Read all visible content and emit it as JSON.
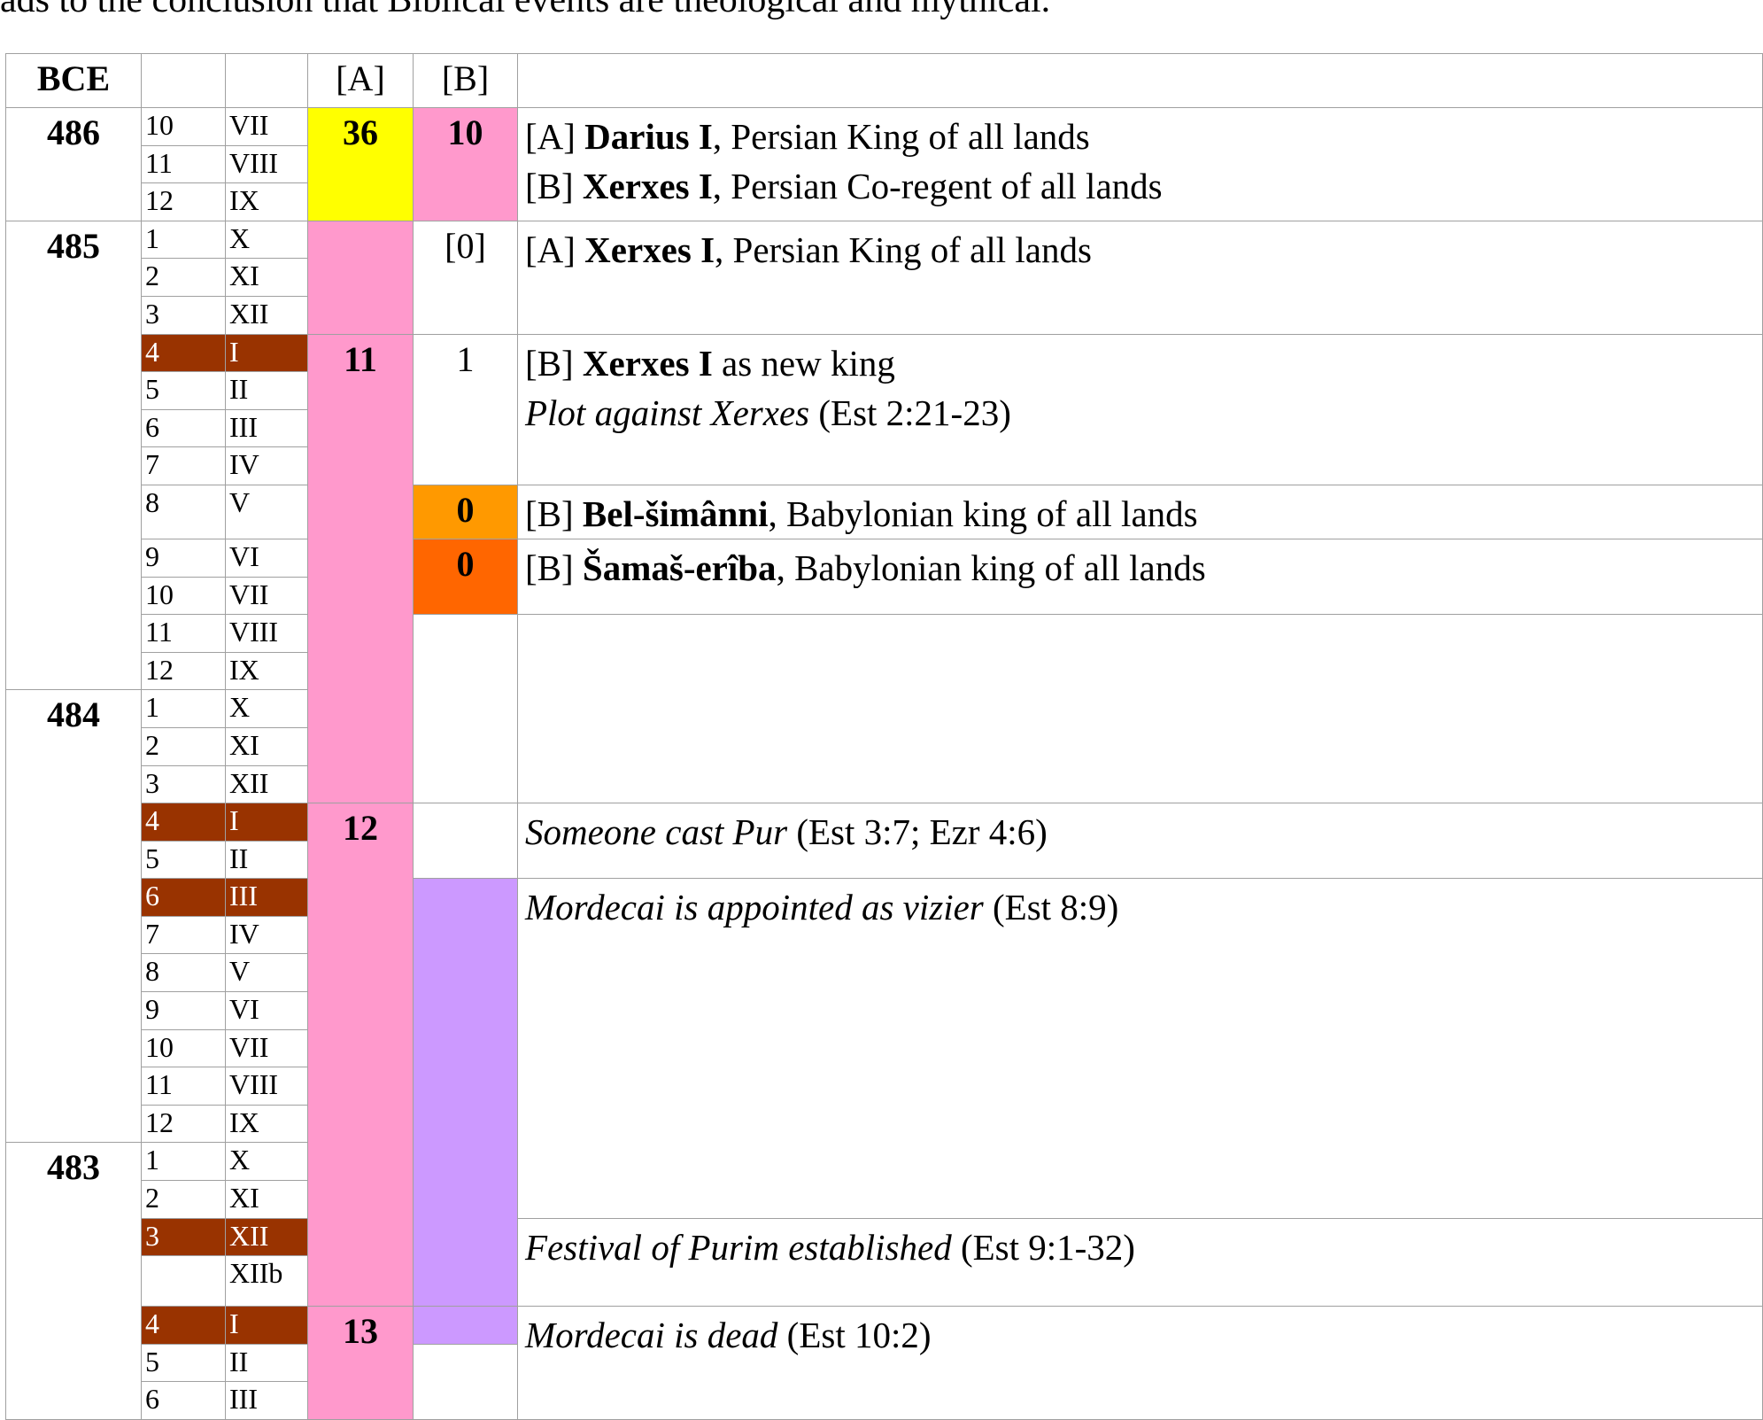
{
  "top_text": "ads to the conclusion that Biblical events are theological and mythical.",
  "header": {
    "bce": "BCE",
    "a": "[A]",
    "b": "[B]"
  },
  "years": [
    {
      "year": "486",
      "months": [
        {
          "num": "10",
          "roman": "VII"
        },
        {
          "num": "11",
          "roman": "VIII"
        },
        {
          "num": "12",
          "roman": "IX"
        }
      ]
    },
    {
      "year": "485",
      "months": [
        {
          "num": "1",
          "roman": "X"
        },
        {
          "num": "2",
          "roman": "XI"
        },
        {
          "num": "3",
          "roman": "XII"
        },
        {
          "num": "4",
          "roman": "I",
          "highlight": true
        },
        {
          "num": "5",
          "roman": "II"
        },
        {
          "num": "6",
          "roman": "III"
        },
        {
          "num": "7",
          "roman": "IV"
        },
        {
          "num": "8",
          "roman": "V"
        },
        {
          "num": "9",
          "roman": "VI"
        },
        {
          "num": "10",
          "roman": "VII"
        },
        {
          "num": "11",
          "roman": "VIII"
        },
        {
          "num": "12",
          "roman": "IX"
        }
      ]
    },
    {
      "year": "484",
      "months": [
        {
          "num": "1",
          "roman": "X"
        },
        {
          "num": "2",
          "roman": "XI"
        },
        {
          "num": "3",
          "roman": "XII"
        },
        {
          "num": "4",
          "roman": "I",
          "highlight": true
        },
        {
          "num": "5",
          "roman": "II"
        },
        {
          "num": "6",
          "roman": "III",
          "highlight": true
        },
        {
          "num": "7",
          "roman": "IV"
        },
        {
          "num": "8",
          "roman": "V"
        },
        {
          "num": "9",
          "roman": "VI"
        },
        {
          "num": "10",
          "roman": "VII"
        },
        {
          "num": "11",
          "roman": "VIII"
        },
        {
          "num": "12",
          "roman": "IX"
        }
      ]
    },
    {
      "year": "483",
      "months": [
        {
          "num": "1",
          "roman": "X"
        },
        {
          "num": "2",
          "roman": "XI"
        },
        {
          "num": "3",
          "roman": "XII",
          "highlight": true
        },
        {
          "roman": "XIIb"
        },
        {
          "num": "4",
          "roman": "I",
          "highlight": true
        },
        {
          "num": "5",
          "roman": "II"
        },
        {
          "num": "6",
          "roman": "III"
        }
      ]
    }
  ],
  "a_cells": [
    {
      "text": "36",
      "color": "#ffff00",
      "style": "b"
    },
    {
      "color": "#ff99cc"
    },
    {
      "text": "11",
      "color": "#ff99cc",
      "style": "b"
    },
    {
      "text": "12",
      "color": "#ff99cc",
      "style": "b"
    },
    {
      "text": "13",
      "color": "#ff99cc",
      "style": "b"
    }
  ],
  "b_cells": [
    {
      "text": "10",
      "color": "#ff99cc",
      "style": "b"
    },
    {
      "text": "[0]",
      "color": "#ffffff"
    },
    {
      "text": "1",
      "color": "#ffffff"
    },
    {
      "text": "0",
      "color": "#ff9900",
      "style": "b"
    },
    {
      "text": "0",
      "color": "#ff6600",
      "style": "b"
    },
    {
      "color": "#ffffff"
    },
    {
      "color": "#ffffff"
    },
    {
      "color": "#cc99ff"
    },
    {
      "color": "#cc99ff"
    },
    {
      "color": "#ffffff"
    }
  ],
  "desc": [
    {
      "lines": [
        [
          {
            "text": "[A] "
          },
          {
            "text": "Darius I",
            "style": "b"
          },
          {
            "text": ", Persian King of all lands"
          }
        ],
        [
          {
            "text": "[B] "
          },
          {
            "text": "Xerxes I",
            "style": "b"
          },
          {
            "text": ", Persian Co-regent of all lands"
          }
        ]
      ]
    },
    {
      "lines": [
        [
          {
            "text": "[A] "
          },
          {
            "text": "Xerxes I",
            "style": "b"
          },
          {
            "text": ", Persian King of all lands"
          }
        ]
      ]
    },
    {
      "lines": [
        [
          {
            "text": "[B] "
          },
          {
            "text": "Xerxes I",
            "style": "b"
          },
          {
            "text": " as new king"
          }
        ],
        [
          {
            "text": "Plot against Xerxes",
            "style": "i"
          },
          {
            "text": " (Est 2:21-23)"
          }
        ]
      ]
    },
    {
      "lines": [
        [
          {
            "text": "[B] "
          },
          {
            "text": "Bel-šimânni",
            "style": "b"
          },
          {
            "text": ", Babylonian king of all lands"
          }
        ]
      ]
    },
    {
      "lines": [
        [
          {
            "text": "[B] "
          },
          {
            "text": "Šamaš-erîba",
            "style": "b"
          },
          {
            "text": ", Babylonian king of all lands"
          }
        ]
      ]
    },
    {},
    {
      "lines": [
        [
          {
            "text": "Someone cast Pur",
            "style": "i"
          },
          {
            "text": " (Est 3:7; Ezr 4:6)"
          }
        ]
      ]
    },
    {
      "lines": [
        [
          {
            "text": "Mordecai is appointed as vizier",
            "style": "i"
          },
          {
            "text": " (Est 8:9)"
          }
        ]
      ]
    },
    {
      "lines": [
        [
          {
            "text": "Festival of Purim established",
            "style": "i"
          },
          {
            "text": " (Est 9:1-32)"
          }
        ]
      ]
    },
    {
      "lines": [
        [
          {
            "text": "Mordecai is dead",
            "style": "i"
          },
          {
            "text": " (Est 10:2)"
          }
        ]
      ]
    }
  ]
}
